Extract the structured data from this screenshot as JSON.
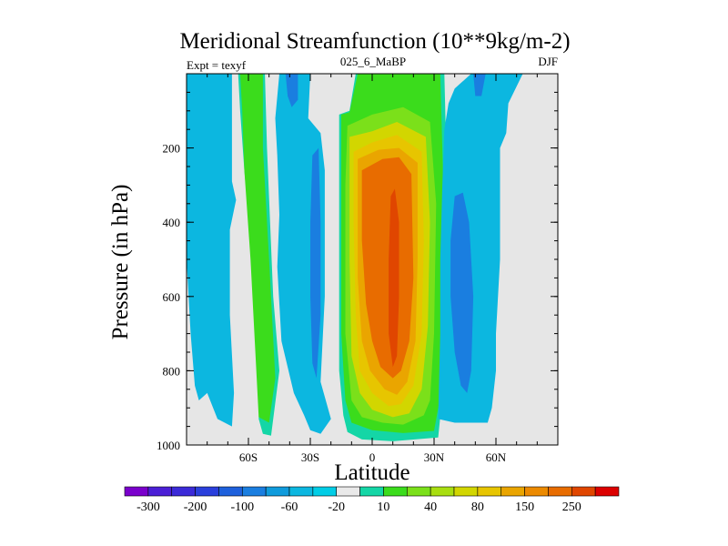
{
  "chart_data": {
    "type": "heatmap",
    "title": "Meridional Streamfunction (10**9kg/m-2)",
    "left_label": "Expt = texyf",
    "center_label": "025_6_MaBP",
    "right_label": "DJF",
    "xlabel": "Latitude",
    "ylabel": "Pressure (in hPa)",
    "xlim": [
      -90,
      90
    ],
    "ylim": [
      1000,
      0
    ],
    "x_ticks": [
      {
        "value": -60,
        "label": "60S"
      },
      {
        "value": -30,
        "label": "30S"
      },
      {
        "value": 0,
        "label": "0"
      },
      {
        "value": 30,
        "label": "30N"
      },
      {
        "value": 60,
        "label": "60N"
      }
    ],
    "y_ticks": [
      {
        "value": 200,
        "label": "200"
      },
      {
        "value": 400,
        "label": "400"
      },
      {
        "value": 600,
        "label": "600"
      },
      {
        "value": 800,
        "label": "800"
      },
      {
        "value": 1000,
        "label": "1000"
      }
    ],
    "background_color": "#e6e6e6",
    "colorbar": {
      "colors": [
        "#7a00cc",
        "#4b1fd6",
        "#3b2ad8",
        "#2a3fdc",
        "#1e60dc",
        "#1a7ee0",
        "#0f9bdc",
        "#0cb7e0",
        "#00cde6",
        "#e9e9e9",
        "#14d6a6",
        "#3bdc1c",
        "#7be01a",
        "#a8de10",
        "#d2d600",
        "#e7c500",
        "#eaa500",
        "#ec8a00",
        "#e86c00",
        "#e04600",
        "#dc0000"
      ],
      "labels": [
        {
          "boundary": 1,
          "text": "-300"
        },
        {
          "boundary": 3,
          "text": "-200"
        },
        {
          "boundary": 5,
          "text": "-100"
        },
        {
          "boundary": 7,
          "text": "-60"
        },
        {
          "boundary": 9,
          "text": "-20"
        },
        {
          "boundary": 11,
          "text": "10"
        },
        {
          "boundary": 13,
          "text": "40"
        },
        {
          "boundary": 15,
          "text": "80"
        },
        {
          "boundary": 17,
          "text": "150"
        },
        {
          "boundary": 19,
          "text": "250"
        }
      ]
    },
    "cells": [
      {
        "name": "contour-60s-negative",
        "color": "#0cb7e0",
        "outline": [
          [
            -90,
            0
          ],
          [
            -68,
            0
          ],
          [
            -68,
            290
          ],
          [
            -66,
            340
          ],
          [
            -69,
            420
          ],
          [
            -69,
            650
          ],
          [
            -67,
            860
          ],
          [
            -68,
            950
          ],
          [
            -75,
            930
          ],
          [
            -80,
            860
          ],
          [
            -84,
            880
          ],
          [
            -86,
            840
          ],
          [
            -88,
            700
          ],
          [
            -90,
            500
          ]
        ]
      },
      {
        "name": "contour-60s-positive-light",
        "color": "#14d6a6",
        "outline": [
          [
            -65,
            0
          ],
          [
            -52,
            0
          ],
          [
            -51,
            200
          ],
          [
            -48,
            600
          ],
          [
            -45,
            800
          ],
          [
            -49,
            975
          ],
          [
            -53,
            970
          ],
          [
            -55,
            930
          ],
          [
            -54,
            800
          ],
          [
            -58,
            500
          ],
          [
            -62,
            260
          ],
          [
            -64,
            100
          ]
        ]
      },
      {
        "name": "contour-60s-positive",
        "color": "#3bdc1c",
        "outline": [
          [
            -64,
            0
          ],
          [
            -53,
            0
          ],
          [
            -53,
            200
          ],
          [
            -50,
            500
          ],
          [
            -47,
            820
          ],
          [
            -50,
            940
          ],
          [
            -55,
            925
          ],
          [
            -56,
            820
          ],
          [
            -59,
            500
          ],
          [
            -62,
            260
          ],
          [
            -63,
            100
          ]
        ]
      },
      {
        "name": "contour-45s-negative",
        "color": "#0cb7e0",
        "outline": [
          [
            -45,
            0
          ],
          [
            -30,
            0
          ],
          [
            -31,
            120
          ],
          [
            -25,
            160
          ],
          [
            -23,
            260
          ],
          [
            -23,
            600
          ],
          [
            -25,
            830
          ],
          [
            -20,
            930
          ],
          [
            -25,
            970
          ],
          [
            -30,
            960
          ],
          [
            -33,
            920
          ],
          [
            -38,
            860
          ],
          [
            -44,
            720
          ],
          [
            -46,
            520
          ],
          [
            -45,
            380
          ],
          [
            -46,
            220
          ],
          [
            -47,
            120
          ]
        ]
      },
      {
        "name": "contour-40s-negative-core",
        "color": "#1a7ee0",
        "outline": [
          [
            -42,
            0
          ],
          [
            -36,
            0
          ],
          [
            -36,
            70
          ],
          [
            -39,
            90
          ],
          [
            -41,
            60
          ]
        ]
      },
      {
        "name": "contour-30s-negative-core",
        "color": "#1a7ee0",
        "outline": [
          [
            -29,
            220
          ],
          [
            -26,
            200
          ],
          [
            -25,
            400
          ],
          [
            -25,
            650
          ],
          [
            -27,
            820
          ],
          [
            -29,
            780
          ],
          [
            -30,
            600
          ],
          [
            -30,
            400
          ]
        ]
      },
      {
        "name": "contour-tropical-level-1",
        "color": "#14d6a6",
        "outline": [
          [
            -16,
            110
          ],
          [
            -11,
            100
          ],
          [
            -8,
            0
          ],
          [
            35,
            0
          ],
          [
            37,
            450
          ],
          [
            37,
            600
          ],
          [
            36,
            750
          ],
          [
            34,
            870
          ],
          [
            32,
            980
          ],
          [
            10,
            990
          ],
          [
            -5,
            985
          ],
          [
            -12,
            965
          ],
          [
            -14,
            920
          ],
          [
            -16,
            800
          ],
          [
            -16,
            400
          ],
          [
            -16,
            250
          ]
        ]
      },
      {
        "name": "contour-tropical-level-2",
        "color": "#3bdc1c",
        "outline": [
          [
            -15,
            110
          ],
          [
            -11,
            104
          ],
          [
            -7,
            0
          ],
          [
            33,
            0
          ],
          [
            35,
            400
          ],
          [
            35,
            650
          ],
          [
            33,
            870
          ],
          [
            30,
            962
          ],
          [
            15,
            968
          ],
          [
            0,
            960
          ],
          [
            -10,
            940
          ],
          [
            -13,
            880
          ],
          [
            -15,
            700
          ],
          [
            -15,
            400
          ],
          [
            -15,
            250
          ]
        ]
      },
      {
        "name": "contour-tropical-level-3",
        "color": "#7be01a",
        "outline": [
          [
            -12,
            140
          ],
          [
            0,
            110
          ],
          [
            15,
            90
          ],
          [
            28,
            130
          ],
          [
            31,
            350
          ],
          [
            30,
            700
          ],
          [
            28,
            880
          ],
          [
            25,
            920
          ],
          [
            15,
            945
          ],
          [
            5,
            940
          ],
          [
            -5,
            925
          ],
          [
            -10,
            880
          ],
          [
            -13,
            700
          ],
          [
            -13,
            300
          ]
        ]
      },
      {
        "name": "contour-tropical-level-4",
        "color": "#d2d600",
        "outline": [
          [
            -11,
            170
          ],
          [
            0,
            155
          ],
          [
            12,
            130
          ],
          [
            26,
            170
          ],
          [
            28,
            400
          ],
          [
            27,
            680
          ],
          [
            24,
            850
          ],
          [
            18,
            915
          ],
          [
            10,
            925
          ],
          [
            0,
            905
          ],
          [
            -6,
            860
          ],
          [
            -10,
            760
          ],
          [
            -11,
            500
          ],
          [
            -11,
            300
          ]
        ]
      },
      {
        "name": "contour-tropical-level-5",
        "color": "#e7c500",
        "outline": [
          [
            -9,
            210
          ],
          [
            0,
            185
          ],
          [
            12,
            165
          ],
          [
            24,
            210
          ],
          [
            25,
            450
          ],
          [
            24,
            700
          ],
          [
            20,
            840
          ],
          [
            14,
            890
          ],
          [
            8,
            895
          ],
          [
            0,
            860
          ],
          [
            -6,
            800
          ],
          [
            -8,
            650
          ],
          [
            -9,
            400
          ]
        ]
      },
      {
        "name": "contour-tropical-level-6",
        "color": "#eaa500",
        "outline": [
          [
            -7,
            230
          ],
          [
            3,
            205
          ],
          [
            13,
            200
          ],
          [
            22,
            240
          ],
          [
            22,
            500
          ],
          [
            21,
            720
          ],
          [
            17,
            830
          ],
          [
            12,
            865
          ],
          [
            6,
            850
          ],
          [
            -1,
            800
          ],
          [
            -5,
            720
          ],
          [
            -7,
            550
          ],
          [
            -7,
            350
          ]
        ]
      },
      {
        "name": "contour-tropical-level-7",
        "color": "#e86c00",
        "outline": [
          [
            -5,
            260
          ],
          [
            5,
            230
          ],
          [
            13,
            225
          ],
          [
            19,
            270
          ],
          [
            20,
            550
          ],
          [
            18,
            720
          ],
          [
            14,
            800
          ],
          [
            10,
            820
          ],
          [
            4,
            790
          ],
          [
            0,
            720
          ],
          [
            -3,
            620
          ],
          [
            -5,
            450
          ]
        ]
      },
      {
        "name": "contour-tropical-max",
        "color": "#e04600",
        "outline": [
          [
            9,
            330
          ],
          [
            11,
            310
          ],
          [
            13,
            400
          ],
          [
            13,
            600
          ],
          [
            12,
            760
          ],
          [
            10,
            790
          ],
          [
            8,
            700
          ],
          [
            8,
            500
          ]
        ]
      },
      {
        "name": "contour-nh-negative",
        "color": "#0cb7e0",
        "outline": [
          [
            48,
            0
          ],
          [
            73,
            0
          ],
          [
            66,
            80
          ],
          [
            65,
            160
          ],
          [
            62,
            200
          ],
          [
            62,
            500
          ],
          [
            60,
            700
          ],
          [
            60,
            800
          ],
          [
            58,
            900
          ],
          [
            56,
            940
          ],
          [
            40,
            940
          ],
          [
            32,
            930
          ],
          [
            33,
            700
          ],
          [
            33,
            500
          ],
          [
            34,
            300
          ],
          [
            35,
            150
          ],
          [
            37,
            80
          ],
          [
            40,
            40
          ]
        ]
      },
      {
        "name": "contour-nh-negative-upper",
        "color": "#1a7ee0",
        "outline": [
          [
            49,
            0
          ],
          [
            55,
            0
          ],
          [
            53,
            60
          ],
          [
            50,
            60
          ]
        ]
      },
      {
        "name": "contour-nh-negative-core",
        "color": "#1a7ee0",
        "outline": [
          [
            40,
            330
          ],
          [
            44,
            320
          ],
          [
            47,
            400
          ],
          [
            49,
            600
          ],
          [
            48,
            800
          ],
          [
            46,
            860
          ],
          [
            43,
            840
          ],
          [
            40,
            750
          ],
          [
            38,
            600
          ],
          [
            38,
            450
          ]
        ]
      }
    ]
  }
}
